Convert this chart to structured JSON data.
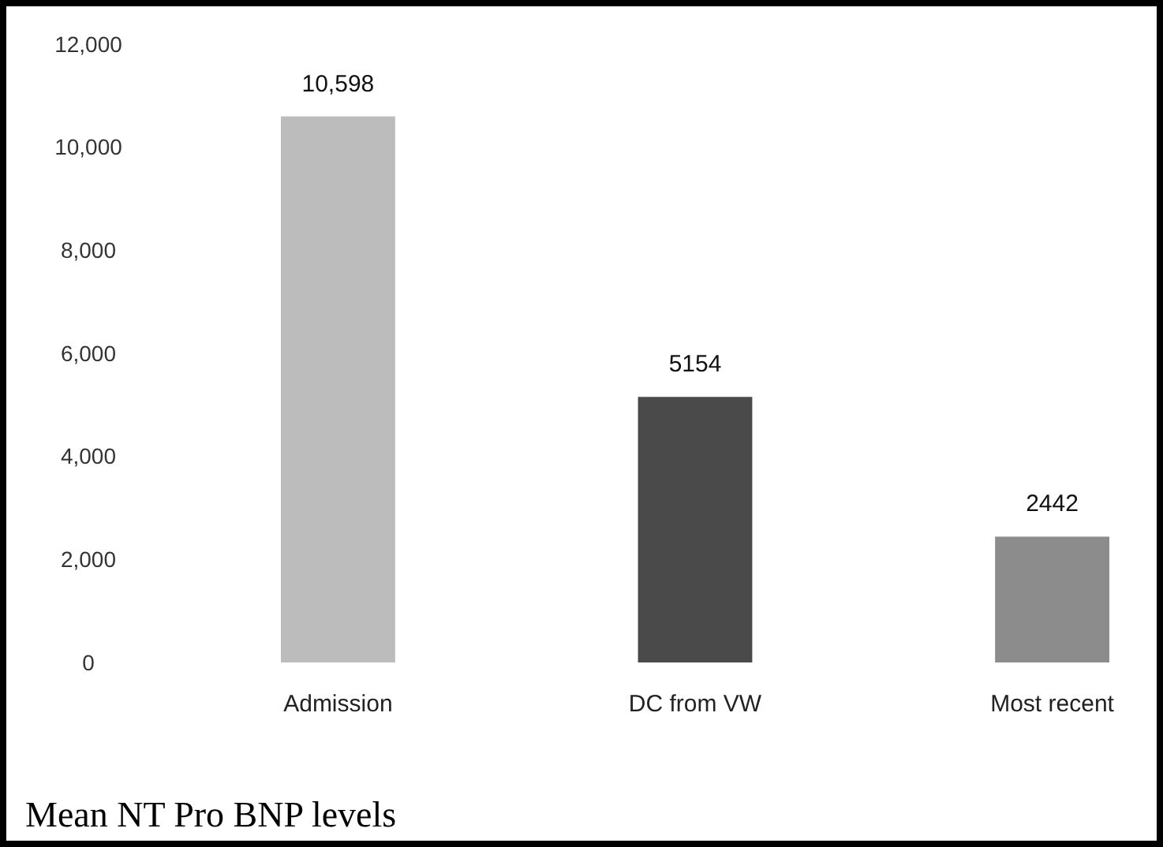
{
  "chart_data": {
    "type": "bar",
    "title": "Mean NT Pro BNP levels",
    "categories": [
      "Admission",
      "DC from VW",
      "Most recent"
    ],
    "values": [
      10598,
      5154,
      2442
    ],
    "colors": [
      "#bcbcbc",
      "#4a4a4a",
      "#8c8c8c"
    ],
    "value_labels": [
      "10,598",
      "5154",
      "2442"
    ],
    "ylim": [
      0,
      12000
    ],
    "yticks": [
      0,
      {
        "value": 2000,
        "label": "2,000"
      },
      {
        "value": 4000,
        "label": "4,000"
      },
      {
        "value": 6000,
        "label": "6,000"
      },
      {
        "value": 8000,
        "label": "8,000"
      },
      {
        "value": 10000,
        "label": "10,000"
      },
      {
        "value": 12000,
        "label": "12,000"
      }
    ],
    "grid": false
  }
}
